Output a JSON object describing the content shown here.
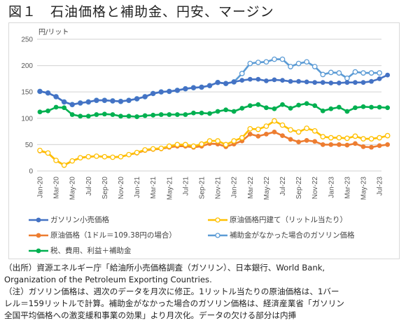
{
  "title": "図１　石油価格と補助金、円安、マージン",
  "notes": [
    "（出所）資源エネルギー庁「給油所小売価格調査（ガソリン）、日本銀行、World Bank,",
    "Organization of the Petroleum Exporting Countries.",
    "（注）ガソリン価格は、週次のデータを月次に修正。1リットル当たりの原油価格は、1バー",
    "レル＝159リットルで計算。補助金がなかった場合のガソリン価格は、経済産業省「ガソリン",
    "全国平均価格への激変緩和事業の効果」より月次化。データの欠ける部分は内挿"
  ],
  "chart_data": {
    "type": "line",
    "title": "",
    "ylabel": "円/リット",
    "xlabel": "",
    "ylim": [
      0,
      250
    ],
    "yticks": [
      0,
      50,
      100,
      150,
      200,
      250
    ],
    "grid": true,
    "legend_position": "bottom",
    "x": [
      "Jan-20",
      "Feb-20",
      "Mar-20",
      "Apr-20",
      "May-20",
      "Jun-20",
      "Jul-20",
      "Aug-20",
      "Sep-20",
      "Oct-20",
      "Nov-20",
      "Dec-20",
      "Jan-21",
      "Feb-21",
      "Mar-21",
      "Apr-21",
      "May-21",
      "Jun-21",
      "Jul-21",
      "Aug-21",
      "Sep-21",
      "Oct-21",
      "Nov-21",
      "Dec-21",
      "Jan-22",
      "Feb-22",
      "Mar-22",
      "Apr-22",
      "May-22",
      "Jun-22",
      "Jul-22",
      "Aug-22",
      "Sep-22",
      "Oct-22",
      "Nov-22",
      "Dec-22",
      "Jan-23",
      "Feb-23",
      "Mar-23",
      "Apr-23",
      "May-23",
      "Jun-23",
      "Jul-23",
      "Aug-23"
    ],
    "xtick_labels": [
      "Jan-20",
      "Mar-20",
      "May-20",
      "Jul-20",
      "Sep-20",
      "Nov-20",
      "Jan-21",
      "Mar-21",
      "May-21",
      "Jul-21",
      "Sep-21",
      "Nov-21",
      "Jan-22",
      "Mar-22",
      "May-22",
      "Jul-22",
      "Sep-22",
      "Nov-22",
      "Jan-23",
      "Mar-23",
      "May-23",
      "Jul-23"
    ],
    "series": [
      {
        "name": "ガソリン小売価格",
        "color": "#4472c4",
        "marker": "filled",
        "values": [
          151,
          148,
          141,
          131,
          126,
          129,
          131,
          134,
          134,
          133,
          132,
          134,
          137,
          141,
          147,
          150,
          151,
          153,
          156,
          158,
          159,
          162,
          168,
          166,
          169,
          172,
          174,
          174,
          171,
          173,
          172,
          170,
          170,
          169,
          168,
          168,
          167,
          167,
          168,
          168,
          168,
          170,
          175,
          182
        ]
      },
      {
        "name": "原油価格円建て（リットル当たり）",
        "color": "#ffc000",
        "marker": "hollow",
        "values": [
          39,
          34,
          20,
          11,
          19,
          25,
          27,
          28,
          27,
          26,
          27,
          31,
          35,
          40,
          42,
          43,
          47,
          50,
          50,
          47,
          51,
          57,
          57,
          50,
          57,
          63,
          80,
          79,
          85,
          95,
          87,
          78,
          74,
          81,
          76,
          65,
          63,
          63,
          62,
          66,
          61,
          61,
          63,
          67
        ]
      },
      {
        "name": "原油価格（1ドル＝109.38円の場合）",
        "color": "#ed7d31",
        "marker": "filled",
        "values": [
          38,
          34,
          20,
          11,
          19,
          25,
          27,
          28,
          27,
          26,
          27,
          31,
          34,
          39,
          41,
          42,
          45,
          47,
          47,
          45,
          47,
          52,
          51,
          46,
          51,
          57,
          70,
          66,
          70,
          74,
          67,
          60,
          55,
          58,
          56,
          50,
          50,
          50,
          49,
          52,
          46,
          45,
          48,
          50
        ]
      },
      {
        "name": "補助金がなかった場合のガソリン価格",
        "color": "#5b9bd5",
        "marker": "hollow",
        "values": [
          151,
          148,
          141,
          131,
          126,
          129,
          131,
          134,
          134,
          133,
          132,
          134,
          137,
          141,
          147,
          150,
          151,
          153,
          156,
          158,
          159,
          162,
          168,
          166,
          169,
          185,
          204,
          206,
          207,
          212,
          212,
          198,
          204,
          207,
          198,
          183,
          187,
          186,
          176,
          188,
          186,
          186,
          186,
          null
        ]
      },
      {
        "name": "税、費用、利益＋補助金",
        "color": "#00b050",
        "marker": "filled",
        "values": [
          112,
          114,
          121,
          120,
          107,
          104,
          104,
          107,
          108,
          107,
          104,
          104,
          103,
          105,
          106,
          107,
          107,
          107,
          107,
          110,
          110,
          109,
          113,
          116,
          113,
          119,
          124,
          126,
          120,
          118,
          126,
          119,
          125,
          128,
          124,
          114,
          118,
          121,
          113,
          120,
          122,
          121,
          121,
          120
        ]
      }
    ]
  }
}
